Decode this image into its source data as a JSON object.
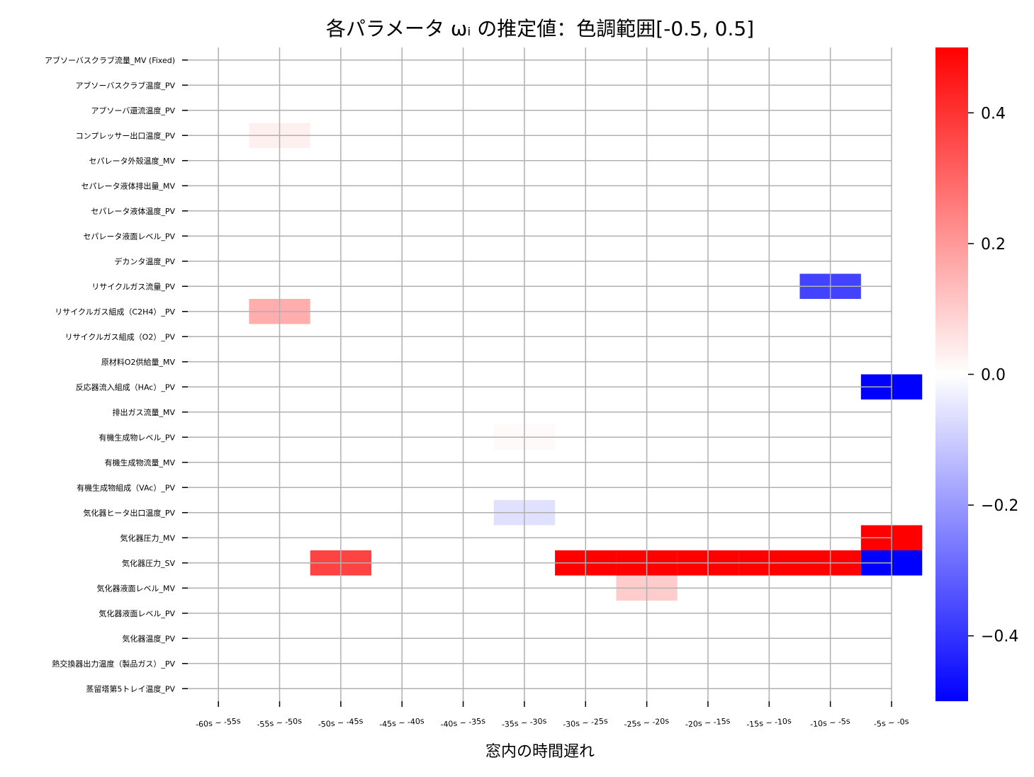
{
  "chart_data": {
    "type": "heatmap",
    "title": "各パラメータ ωᵢ の推定値：色調範囲[-0.5, 0.5]",
    "xlabel": "窓内の時間遅れ",
    "ylabel": "",
    "x_categories": [
      "-60s ~ -55s",
      "-55s ~ -50s",
      "-50s ~ -45s",
      "-45s ~ -40s",
      "-40s ~ -35s",
      "-35s ~ -30s",
      "-30s ~ -25s",
      "-25s ~ -20s",
      "-20s ~ -15s",
      "-15s ~ -10s",
      "-10s ~ -5s",
      "-5s ~ -0s"
    ],
    "y_categories": [
      "アブソーバスクラブ流量_MV (Fixed)",
      "アブソーバスクラブ温度_PV",
      "アブソーバ還流温度_PV",
      "コンプレッサー出口温度_PV",
      "セパレータ外殻温度_MV",
      "セパレータ液体排出量_MV",
      "セパレータ液体温度_PV",
      "セパレータ液面レベル_PV",
      "デカンタ温度_PV",
      "リサイクルガス流量_PV",
      "リサイクルガス組成（C2H4）_PV",
      "リサイクルガス組成（O2）_PV",
      "原材料O2供給量_MV",
      "反応器流入組成（HAc）_PV",
      "排出ガス流量_MV",
      "有機生成物レベル_PV",
      "有機生成物流量_MV",
      "有機生成物組成（VAc）_PV",
      "気化器ヒータ出口温度_PV",
      "気化器圧力_MV",
      "気化器圧力_SV",
      "気化器液面レベル_MV",
      "気化器液面レベル_PV",
      "気化器温度_PV",
      "熱交換器出力温度（製品ガス）_PV",
      "蒸留塔第5トレイ温度_PV"
    ],
    "cells": [
      {
        "row": 3,
        "col": 1,
        "value": 0.03
      },
      {
        "row": 9,
        "col": 10,
        "value": -0.37
      },
      {
        "row": 10,
        "col": 1,
        "value": 0.16
      },
      {
        "row": 13,
        "col": 11,
        "value": -0.5
      },
      {
        "row": 15,
        "col": 5,
        "value": 0.01
      },
      {
        "row": 18,
        "col": 5,
        "value": -0.06
      },
      {
        "row": 19,
        "col": 11,
        "value": 0.5
      },
      {
        "row": 20,
        "col": 2,
        "value": 0.37
      },
      {
        "row": 20,
        "col": 6,
        "value": 0.5
      },
      {
        "row": 20,
        "col": 7,
        "value": 0.5
      },
      {
        "row": 20,
        "col": 8,
        "value": 0.5
      },
      {
        "row": 20,
        "col": 9,
        "value": 0.5
      },
      {
        "row": 20,
        "col": 10,
        "value": 0.5
      },
      {
        "row": 20,
        "col": 11,
        "value": -0.5
      },
      {
        "row": 21,
        "col": 7,
        "value": 0.1
      }
    ],
    "vmin": -0.5,
    "vmax": 0.5,
    "colormap": "bwr",
    "colorbar_ticks": [
      "−0.4",
      "−0.2",
      "0.0",
      "0.2",
      "0.4"
    ],
    "colorbar_tick_values": [
      -0.4,
      -0.2,
      0.0,
      0.2,
      0.4
    ],
    "grid": true
  }
}
